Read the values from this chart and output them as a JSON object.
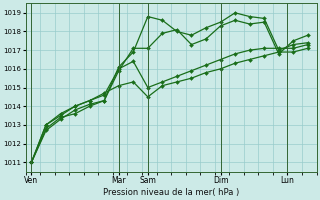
{
  "xlabel": "Pression niveau de la mer( hPa )",
  "bg_color": "#cceae7",
  "grid_color": "#99cccc",
  "line_color": "#1a6e1a",
  "ylim": [
    1010.5,
    1019.5
  ],
  "yticks": [
    1011,
    1012,
    1013,
    1014,
    1015,
    1016,
    1017,
    1018,
    1019
  ],
  "xlim": [
    0,
    100
  ],
  "day_labels": [
    "Ven",
    "Mar",
    "Sam",
    "Dim",
    "Lun"
  ],
  "day_x": [
    2,
    32,
    42,
    67,
    90
  ],
  "series1_x": [
    2,
    7,
    12,
    17,
    22,
    27,
    32,
    37,
    42,
    47,
    52,
    57,
    62,
    67,
    72,
    77,
    82,
    87,
    92,
    97
  ],
  "series1_y": [
    1011.0,
    1012.7,
    1013.3,
    1013.8,
    1014.1,
    1014.3,
    1016.1,
    1016.9,
    1018.8,
    1018.6,
    1018.0,
    1017.8,
    1018.2,
    1018.5,
    1019.0,
    1018.8,
    1018.7,
    1017.0,
    1017.3,
    1017.4
  ],
  "series2_x": [
    2,
    7,
    12,
    17,
    22,
    27,
    32,
    37,
    42,
    47,
    52,
    57,
    62,
    67,
    72,
    77,
    82,
    87,
    92,
    97
  ],
  "series2_y": [
    1011.0,
    1012.8,
    1013.4,
    1013.6,
    1014.0,
    1014.3,
    1015.9,
    1017.1,
    1017.1,
    1017.9,
    1018.1,
    1017.3,
    1017.6,
    1018.3,
    1018.6,
    1018.4,
    1018.5,
    1016.8,
    1017.5,
    1017.8
  ],
  "series3_x": [
    2,
    7,
    12,
    17,
    22,
    27,
    32,
    37,
    42,
    47,
    52,
    57,
    62,
    67,
    72,
    77,
    82,
    87,
    92,
    97
  ],
  "series3_y": [
    1011.0,
    1013.0,
    1013.5,
    1014.0,
    1014.3,
    1014.6,
    1016.0,
    1016.4,
    1015.0,
    1015.3,
    1015.6,
    1015.9,
    1016.2,
    1016.5,
    1016.8,
    1017.0,
    1017.1,
    1017.1,
    1017.1,
    1017.3
  ],
  "series4_x": [
    2,
    7,
    12,
    17,
    22,
    27,
    32,
    37,
    42,
    47,
    52,
    57,
    62,
    67,
    72,
    77,
    82,
    87,
    92,
    97
  ],
  "series4_y": [
    1011.0,
    1013.0,
    1013.6,
    1014.0,
    1014.3,
    1014.7,
    1015.1,
    1015.3,
    1014.5,
    1015.1,
    1015.3,
    1015.5,
    1015.8,
    1016.0,
    1016.3,
    1016.5,
    1016.7,
    1016.9,
    1016.9,
    1017.1
  ],
  "marker": "D",
  "marker_size": 2.0,
  "line_width": 0.9
}
